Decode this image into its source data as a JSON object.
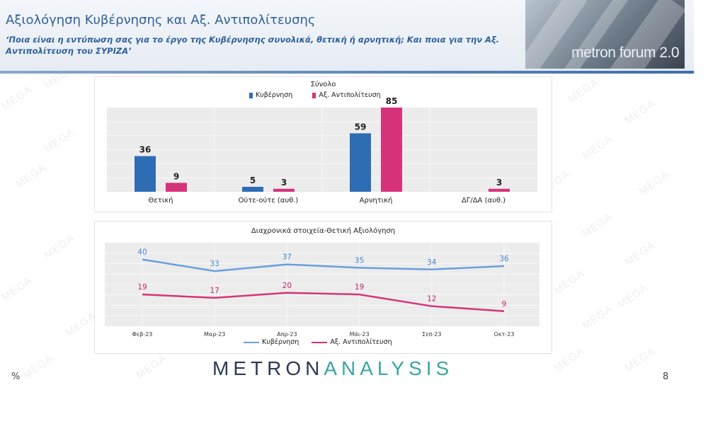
{
  "header": {
    "title": "Αξιολόγηση Κυβέρνησης και Αξ. Αντιπολίτευσης",
    "subtitle": "‘Ποια είναι η εντύπωση σας για το έργο της Κυβέρνησης συνολικά, θετική ή αρνητική; Και ποια για την Αξ. Αντιπολίτευση του ΣΥΡΙΖΑ’",
    "forum_logo_text": "metron forum 2.0"
  },
  "footer": {
    "logo_part1": "METRON",
    "logo_part2": "ANALYSIS",
    "unit": "%",
    "page_number": "8"
  },
  "watermark_text": "MEGA",
  "colors": {
    "government": "#2e6db4",
    "opposition": "#d6337a",
    "gov_line": "#6a9fe0",
    "grid_bg": "#ececec",
    "title": "#2f5f9a",
    "logo_dark": "#2b3a55",
    "logo_teal": "#3aa6a0"
  },
  "chart_data": [
    {
      "type": "bar",
      "title": "Σύνολο",
      "categories": [
        "Θετική",
        "Ούτε-ούτε (αυθ.)",
        "Αρνητική",
        "ΔΓ/ΔΑ (αυθ.)"
      ],
      "series": [
        {
          "name": "Κυβέρνηση",
          "values": [
            36,
            5,
            59,
            null
          ]
        },
        {
          "name": "Αξ. Αντιπολίτευση",
          "values": [
            9,
            3,
            85,
            3
          ]
        }
      ],
      "ylim": [
        0,
        85
      ],
      "legend": "top",
      "grid": true
    },
    {
      "type": "line",
      "title": "Διαχρονικά στοιχεία-Θετική Αξιολόγηση",
      "categories": [
        "Φεβ-23",
        "Μαρ-23",
        "Απρ-23",
        "Μάι-23",
        "Σεπ-23",
        "Οκτ-23"
      ],
      "series": [
        {
          "name": "Κυβέρνηση",
          "values": [
            40,
            33,
            37,
            35,
            34,
            36
          ]
        },
        {
          "name": "Αξ. Αντιπολίτευση",
          "values": [
            19,
            17,
            20,
            19,
            12,
            9
          ]
        }
      ],
      "legend": "bottom",
      "grid": true
    }
  ]
}
